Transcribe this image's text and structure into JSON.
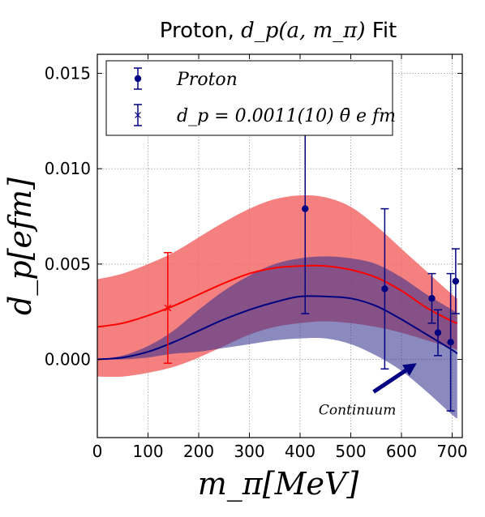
{
  "chart_data": {
    "type": "line",
    "title_prefix": "Proton, ",
    "title_math": "d_p(a, m_π)",
    "title_suffix": " Fit",
    "xlabel": "m_π[MeV]",
    "ylabel": "d_p[efm]",
    "xlim": [
      0,
      720
    ],
    "ylim": [
      -0.0041,
      0.016
    ],
    "xticks": [
      0,
      100,
      200,
      300,
      400,
      500,
      600,
      700
    ],
    "xtick_labels": [
      "0",
      "100",
      "200",
      "300",
      "400",
      "500",
      "600",
      "700"
    ],
    "yticks": [
      0.0,
      0.005,
      0.01,
      0.015
    ],
    "ytick_labels": [
      "0.000",
      "0.005",
      "0.010",
      "0.015"
    ],
    "grid": true,
    "legend_position": "top-left",
    "legend": [
      {
        "label": "Proton",
        "marker": "circle",
        "color": "#000080"
      },
      {
        "label": "d_p = 0.0011(10) θ̄ e fm",
        "marker": "x",
        "color": "#000080"
      }
    ],
    "colors": {
      "lattice": "#000080",
      "continuum": "#ff0000",
      "continuum_band": "#f36a6a",
      "lattice_band": "#6a6ab5"
    },
    "lattice_points": [
      {
        "x": 410,
        "y": 0.0079,
        "yerr": 0.0055
      },
      {
        "x": 567,
        "y": 0.0037,
        "yerr": 0.0042
      },
      {
        "x": 660,
        "y": 0.0032,
        "yerr": 0.0013
      },
      {
        "x": 672,
        "y": 0.0014,
        "yerr": 0.0012
      },
      {
        "x": 697,
        "y": 0.0009,
        "yerr": 0.0036
      },
      {
        "x": 707,
        "y": 0.0041,
        "yerr": 0.0017
      }
    ],
    "continuum_point": {
      "x": 139,
      "y": 0.0027,
      "yerr": 0.0029
    },
    "continuum_fit": {
      "x": [
        0,
        50,
        100,
        150,
        200,
        250,
        300,
        350,
        400,
        450,
        500,
        550,
        600,
        650,
        700,
        710
      ],
      "center": [
        0.0017,
        0.0019,
        0.0023,
        0.0028,
        0.0034,
        0.004,
        0.0045,
        0.0048,
        0.0049,
        0.0049,
        0.0047,
        0.0043,
        0.0036,
        0.0027,
        0.002,
        0.0019
      ],
      "upper": [
        0.0042,
        0.0045,
        0.005,
        0.0056,
        0.0064,
        0.0072,
        0.0079,
        0.0084,
        0.0086,
        0.0085,
        0.008,
        0.007,
        0.0058,
        0.0046,
        0.0034,
        0.0032
      ],
      "lower": [
        -0.0009,
        -0.0009,
        -0.0007,
        -0.0004,
        0.0001,
        0.0007,
        0.0013,
        0.0017,
        0.0019,
        0.002,
        0.0019,
        0.0017,
        0.0014,
        0.001,
        0.0006,
        0.0005
      ]
    },
    "lattice_fit": {
      "x": [
        0,
        50,
        100,
        150,
        200,
        250,
        300,
        350,
        400,
        450,
        500,
        550,
        600,
        650,
        700,
        710
      ],
      "center": [
        0.0,
        0.0001,
        0.0004,
        0.0009,
        0.0015,
        0.0021,
        0.0026,
        0.003,
        0.0033,
        0.0033,
        0.0032,
        0.0028,
        0.0021,
        0.0013,
        0.0005,
        0.0003
      ],
      "upper": [
        0.0,
        0.0002,
        0.0007,
        0.0015,
        0.0026,
        0.0036,
        0.0044,
        0.005,
        0.0053,
        0.0054,
        0.0053,
        0.005,
        0.0043,
        0.0034,
        0.0026,
        0.0024
      ],
      "lower": [
        0.0,
        0.0,
        0.0001,
        0.0003,
        0.0004,
        0.0006,
        0.0008,
        0.001,
        0.0011,
        0.0011,
        0.0008,
        0.0002,
        -0.0006,
        -0.0017,
        -0.0029,
        -0.0031
      ]
    },
    "annotation": {
      "text": "Continuum",
      "arrow_from": [
        545,
        -0.0017
      ],
      "arrow_to": [
        630,
        -0.0002
      ]
    }
  }
}
